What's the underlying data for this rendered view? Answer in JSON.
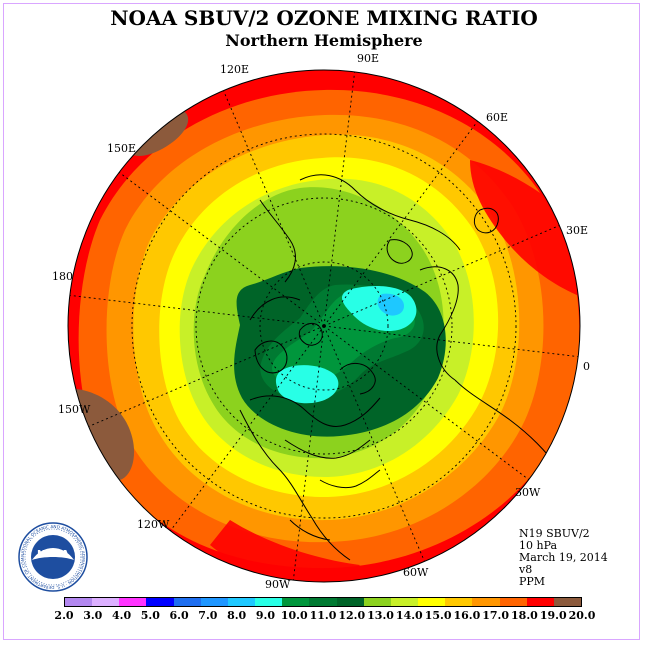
{
  "title": "NOAA SBUV/2 OZONE MIXING RATIO",
  "subtitle": "Northern Hemisphere",
  "longitude_labels": [
    "90E",
    "60E",
    "30E",
    "0",
    "30W",
    "60W",
    "90W",
    "120W",
    "150W",
    "180",
    "150E",
    "120E"
  ],
  "info": {
    "satellite": "N19 SBUV/2",
    "level": "10 hPa",
    "date": "March 19, 2014",
    "version": "v8",
    "units": "PPM"
  },
  "logo": {
    "text": "NOAA",
    "ring_text": "NATIONAL OCEANIC AND ATMOSPHERIC ADMINISTRATION · U.S. DEPARTMENT OF COMMERCE"
  },
  "colorbar": {
    "ticks": [
      "2.0",
      "3.0",
      "4.0",
      "5.0",
      "6.0",
      "7.0",
      "8.0",
      "9.0",
      "10.0",
      "11.0",
      "12.0",
      "13.0",
      "14.0",
      "15.0",
      "16.0",
      "17.0",
      "18.0",
      "19.0",
      "20.0"
    ],
    "colors": [
      "#b388f0",
      "#dcb0ff",
      "#ff33ff",
      "#0000ff",
      "#1e6ef0",
      "#1e96ff",
      "#1ec8ff",
      "#28ffe6",
      "#00963c",
      "#007a32",
      "#006428",
      "#8cd21e",
      "#c8f028",
      "#ffff00",
      "#ffc800",
      "#ff9600",
      "#ff6400",
      "#ff0000",
      "#8c5a3c"
    ]
  },
  "colors": {
    "brown": "#8c5a3c",
    "red": "#ff0000",
    "red_orange": "#ff6400",
    "orange": "#ff9600",
    "amber": "#ffc800",
    "yellow": "#ffff00",
    "yellow_green": "#c8f028",
    "light_green": "#8cd21e",
    "dark_green": "#006428",
    "mid_green": "#007a32",
    "green": "#00963c",
    "cyan": "#28ffe6",
    "light_blue": "#1ec8ff"
  }
}
